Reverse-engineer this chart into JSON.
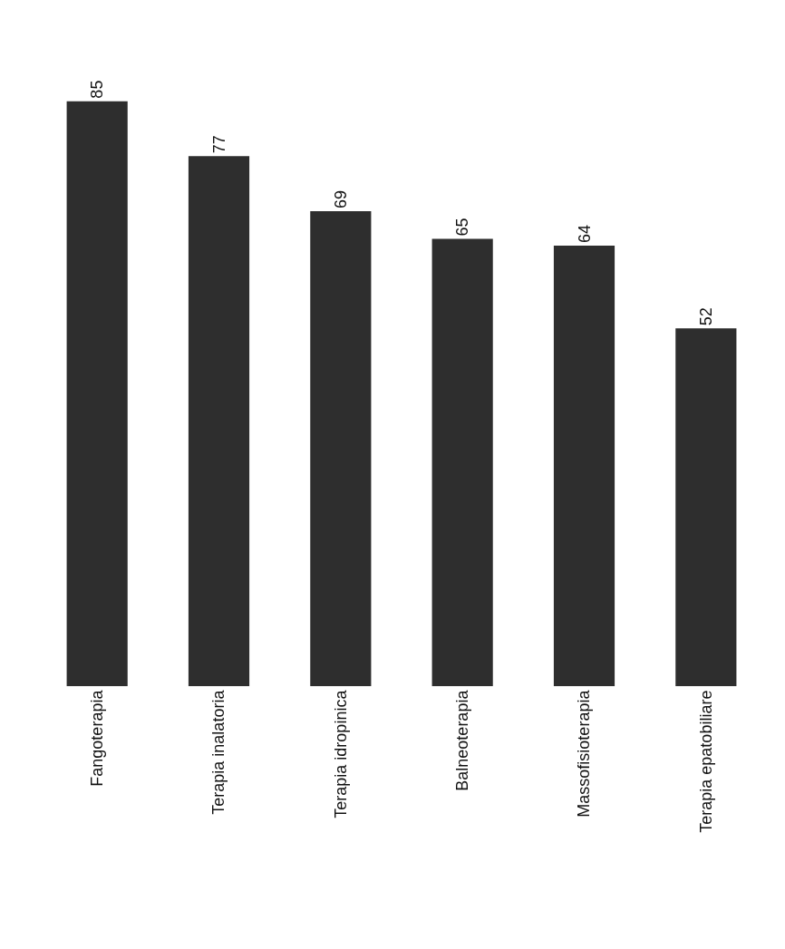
{
  "chart_data": {
    "type": "bar",
    "categories": [
      "Fangoterapia",
      "Terapia inalatoria",
      "Terapia idropinica",
      "Balneoterapia",
      "Massofisioterapia",
      "Terapia epatobiliare"
    ],
    "values": [
      85,
      77,
      69,
      65,
      64,
      52
    ],
    "color": "#2e2e2e",
    "data_labels": true,
    "legend": false
  }
}
